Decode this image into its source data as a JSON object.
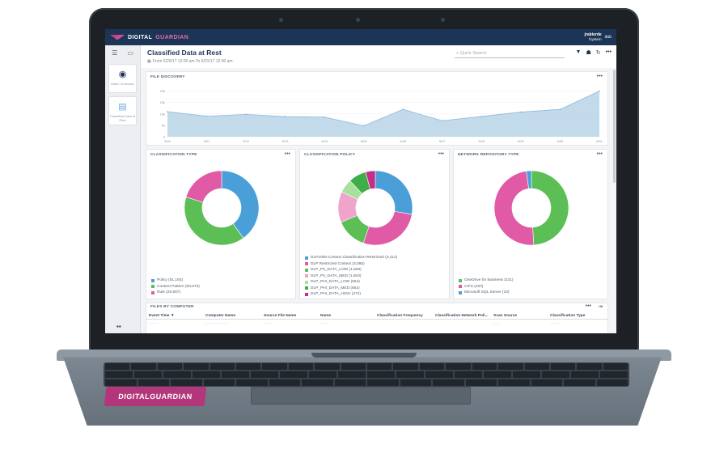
{
  "header": {
    "logo_main": "DIGITAL",
    "logo_accent": "GUARDIAN",
    "user_name": "jrabierde",
    "user_domain": "fsystem",
    "user_badge": "dub"
  },
  "sidebar": {
    "icons": [
      "filter-panel-icon",
      "dashboard-icon"
    ],
    "cards": [
      {
        "icon": "alarm-icon",
        "label": "Alarm Summary"
      },
      {
        "icon": "file-icon",
        "label": "Classified Data at Rest"
      }
    ],
    "bottom_icon": "grid-view-icon"
  },
  "page": {
    "title": "Classified Data at Rest",
    "date_range": "From 5/20/17 12:00 am To 6/01/17 12:00 am",
    "search_placeholder": "Quick Search",
    "tools": [
      "filter-icon",
      "group-icon",
      "refresh-icon",
      "more-icon"
    ]
  },
  "file_discovery": {
    "title": "FILE DISCOVERY",
    "menu": "•••",
    "chart_data": {
      "type": "area",
      "x": [
        "5/20",
        "5/21",
        "5/22",
        "5/23",
        "5/24",
        "5/25",
        "5/26",
        "5/27",
        "5/28",
        "5/29",
        "5/30",
        "5/31"
      ],
      "values": [
        11000,
        9000,
        9800,
        8800,
        8600,
        4800,
        12000,
        7000,
        8900,
        10800,
        12000,
        20000
      ],
      "yticks": [
        "20k",
        "15k",
        "10k",
        "5k",
        "0"
      ],
      "ylim": [
        0,
        22000
      ],
      "color": "#b9d3e8",
      "stroke": "#8fb7d9"
    }
  },
  "classification_type": {
    "title": "CLASSIFICATION TYPE",
    "menu": "•••",
    "chart_data": {
      "type": "pie",
      "labels": [
        "Policy (51,193)",
        "Content Pattern (50,670)",
        "Rule (25,907)"
      ],
      "values": [
        51193,
        50670,
        25907
      ],
      "colors": [
        "#4a9fd8",
        "#5cbf56",
        "#e05aa6"
      ]
    }
  },
  "classification_policy": {
    "title": "CLASSIFICATION POLICY",
    "menu": "•••",
    "chart_data": {
      "type": "pie",
      "labels": [
        "DLP1000-Context Classification-Restricted (3,114)",
        "DLP Restricted Context (3,065)",
        "DLP_PII_DATA_LOW (1,505)",
        "DLP_PII_DATA_MED (1,503)",
        "DLP_PHI_DATA_LOW (664)",
        "DLP_PHI_DATA_MED (862)",
        "DLP_PHI_DATA_HIGH (474)"
      ],
      "values": [
        3114,
        3065,
        1505,
        1503,
        664,
        862,
        474
      ],
      "colors": [
        "#4a9fd8",
        "#e05aa6",
        "#5cbf56",
        "#f0a4cc",
        "#a8e0a0",
        "#3fae49",
        "#c42d8a"
      ]
    }
  },
  "network_repository_type": {
    "title": "NETWORK REPOSITORY TYPE",
    "menu": "•••",
    "chart_data": {
      "type": "pie",
      "labels": [
        "OneDrive for Business (221)",
        "CIFS (220)",
        "Microsoft SQL Server (10)"
      ],
      "values": [
        221,
        220,
        10
      ],
      "colors": [
        "#5cbf56",
        "#e05aa6",
        "#4a9fd8"
      ]
    }
  },
  "files_by_computer": {
    "title": "FILES BY COMPUTER",
    "menu": "•••",
    "columns": [
      "Event Time ▼",
      "Computer Name",
      "Source File Name",
      "Name",
      "Classification Frequency",
      "Classification Network Poli...",
      "Scan Source",
      "Classification Type"
    ]
  },
  "laptop": {
    "keyboard_logo": "DIGITALGUARDIAN"
  }
}
